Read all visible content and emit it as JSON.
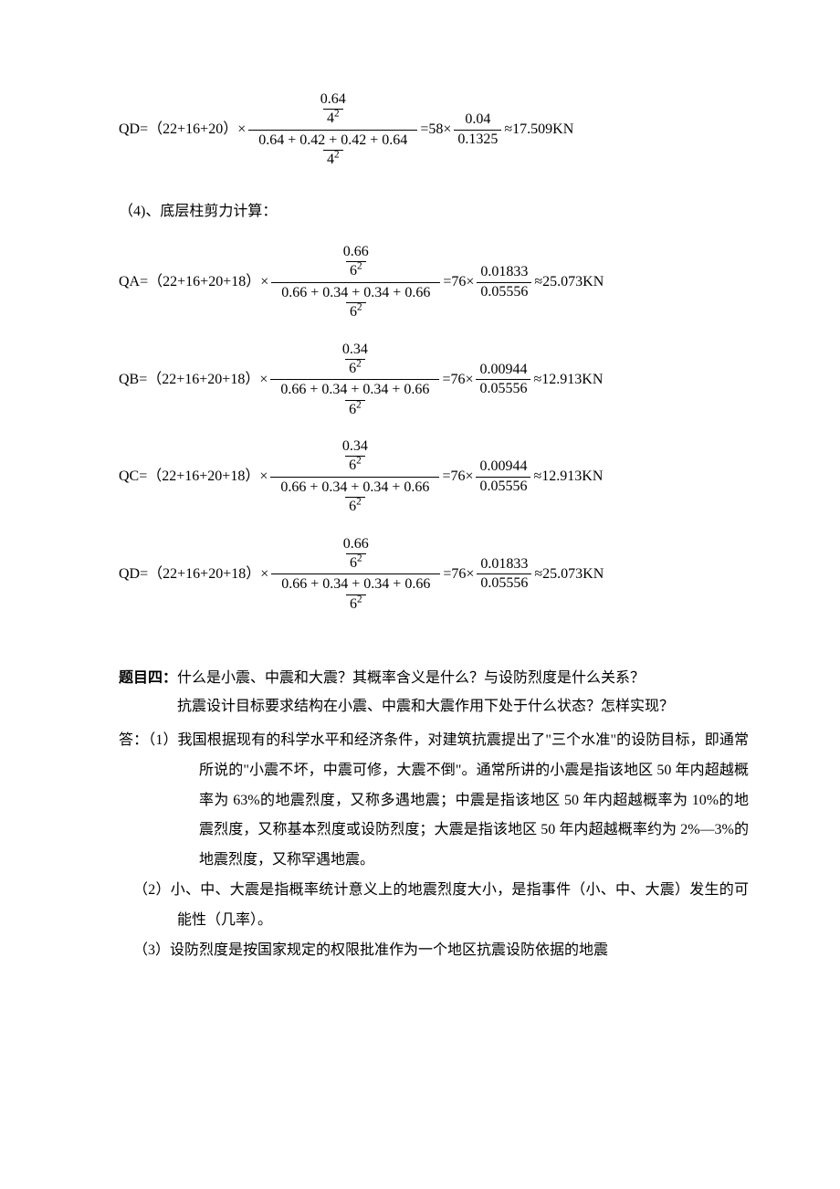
{
  "equations": {
    "QD_top": {
      "label": "QD=",
      "sum_expr": "（22+16+20）",
      "times": "×",
      "inner_num": "0.64",
      "inner_den_base": "4",
      "inner_den_exp": "2",
      "outer_den_sum": "0.64 + 0.42 + 0.42 + 0.64",
      "outer_den_base": "4",
      "outer_den_exp": "2",
      "eq_mid": "=58×",
      "mid_num": "0.04",
      "mid_den": "0.1325",
      "approx": "≈17.509KN"
    },
    "section_label": "（4)、底层柱剪力计算：",
    "bottom": [
      {
        "label": "QA=",
        "sum_expr": "（22+16+20+18）",
        "inner_num": "0.66",
        "inner_den_base": "6",
        "inner_den_exp": "2",
        "outer_den_sum": "0.66 + 0.34 + 0.34 + 0.66",
        "outer_den_base": "6",
        "outer_den_exp": "2",
        "eq_mid": "=76×",
        "mid_num": "0.01833",
        "mid_den": "0.05556",
        "approx": "≈25.073KN"
      },
      {
        "label": "QB=",
        "sum_expr": "（22+16+20+18）",
        "inner_num": "0.34",
        "inner_den_base": "6",
        "inner_den_exp": "2",
        "outer_den_sum": "0.66 + 0.34 + 0.34 + 0.66",
        "outer_den_base": "6",
        "outer_den_exp": "2",
        "eq_mid": "=76×",
        "mid_num": "0.00944",
        "mid_den": "0.05556",
        "approx": "≈12.913KN"
      },
      {
        "label": "QC=",
        "sum_expr": "（22+16+20+18）",
        "inner_num": "0.34",
        "inner_den_base": "6",
        "inner_den_exp": "2",
        "outer_den_sum": "0.66 + 0.34 + 0.34 + 0.66",
        "outer_den_base": "6",
        "outer_den_exp": "2",
        "eq_mid": "=76×",
        "mid_num": "0.00944",
        "mid_den": "0.05556",
        "approx": "≈12.913KN"
      },
      {
        "label": "QD=",
        "sum_expr": "（22+16+20+18）",
        "inner_num": "0.66",
        "inner_den_base": "6",
        "inner_den_exp": "2",
        "outer_den_sum": "0.66 + 0.34 + 0.34 + 0.66",
        "outer_den_base": "6",
        "outer_den_exp": "2",
        "eq_mid": "=76×",
        "mid_num": "0.01833",
        "mid_den": "0.05556",
        "approx": "≈25.073KN"
      }
    ]
  },
  "q4": {
    "label": "题目四：",
    "question_l1": "什么是小震、中震和大震？其概率含义是什么？与设防烈度是什么关系？",
    "question_l2": "抗震设计目标要求结构在小震、中震和大震作用下处于什么状态？怎样实现？",
    "a1": "答：（1）我国根据现有的科学水平和经济条件，对建筑抗震提出了\"三个水准\"的设防目标，即通常所说的\"小震不坏，中震可修，大震不倒\"。通常所讲的小震是指该地区 50 年内超越概率为 63%的地震烈度，又称多遇地震；中震是指该地区 50 年内超越概率为 10%的地震烈度，又称基本烈度或设防烈度；大震是指该地区 50 年内超越概率约为 2%—3%的地震烈度，又称罕遇地震。",
    "a2": "（2）小、中、大震是指概率统计意义上的地震烈度大小，是指事件（小、中、大震）发生的可能性（几率）。",
    "a3": "（3）设防烈度是按国家规定的权限批准作为一个地区抗震设防依据的地震"
  },
  "symbols": {
    "times": "×"
  }
}
